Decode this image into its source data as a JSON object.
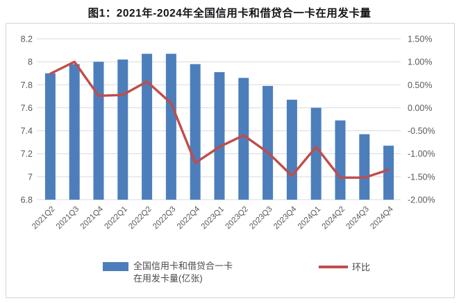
{
  "title": "图1：2021年-2024年全国信用卡和借贷合一卡在用发卡量",
  "legend": {
    "bar_label_line1": "全国信用卡和借贷合一卡",
    "bar_label_line2": "在用发卡量(亿张)",
    "line_label": "环比"
  },
  "colors": {
    "bar": "#4d7ebc",
    "line": "#bf4d4a",
    "grid": "#d9d9d9",
    "axis_text": "#595959",
    "title_text": "#15161a",
    "frame_border": "#cfd2d6"
  },
  "chart_data": {
    "type": "combo",
    "categories": [
      "2021Q2",
      "2021Q3",
      "2021Q4",
      "2022Q1",
      "2022Q2",
      "2022Q3",
      "2022Q4",
      "2023Q1",
      "2023Q2",
      "2023Q3",
      "2023Q4",
      "2024Q1",
      "2024Q2",
      "2024Q3",
      "2024Q4"
    ],
    "series": [
      {
        "name": "全国信用卡和借贷合一卡在用发卡量(亿张)",
        "type": "bar",
        "axis": "left",
        "values": [
          7.9,
          7.98,
          8.0,
          8.02,
          8.07,
          8.07,
          7.98,
          7.91,
          7.86,
          7.79,
          7.67,
          7.6,
          7.49,
          7.37,
          7.27
        ]
      },
      {
        "name": "环比",
        "type": "line",
        "axis": "right",
        "unit": "%",
        "values": [
          0.74,
          1.0,
          0.26,
          0.28,
          0.57,
          0.1,
          -1.2,
          -0.85,
          -0.6,
          -0.97,
          -1.48,
          -0.85,
          -1.52,
          -1.52,
          -1.35
        ]
      }
    ],
    "left_axis": {
      "min": 6.8,
      "max": 8.2,
      "tick_labels": [
        "8.2",
        "8",
        "7.8",
        "7.6",
        "7.4",
        "7.2",
        "7",
        "6.8"
      ]
    },
    "right_axis": {
      "min": -2.0,
      "max": 1.5,
      "tick_labels": [
        "1.50%",
        "1.00%",
        "0.50%",
        "0.00%",
        "-0.50%",
        "-1.00%",
        "-1.50%",
        "-2.00%"
      ]
    },
    "grid": true,
    "legend_position": "bottom",
    "x_label_rotation": -45
  }
}
